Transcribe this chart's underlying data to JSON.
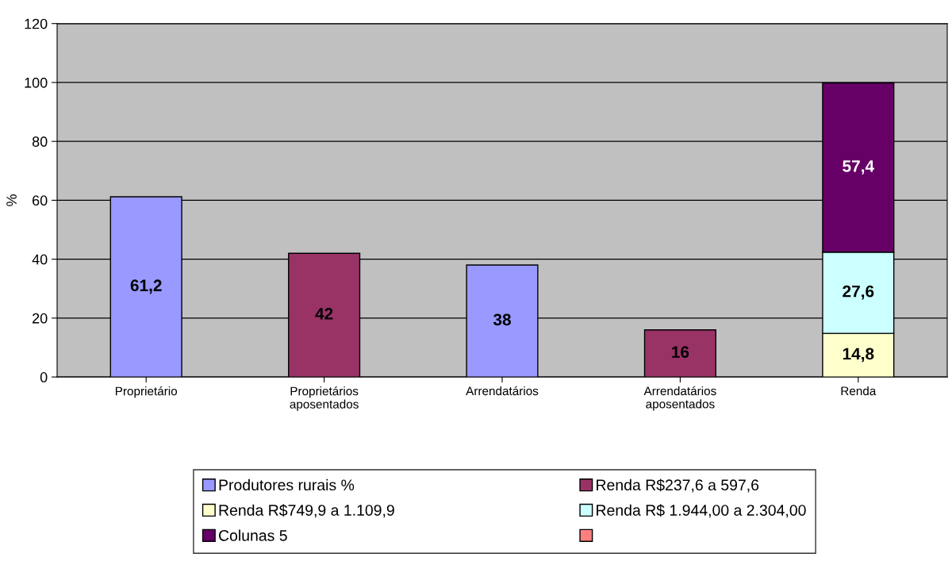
{
  "chart_data": {
    "type": "bar",
    "stacked": true,
    "ylabel": "%",
    "categories": [
      "Proprietário",
      "Proprietários\naposentados",
      "Arrendatários",
      "Arrendatários\naposentados",
      "Renda"
    ],
    "series": [
      {
        "name": "Produtores rurais %",
        "color": "#9999ff",
        "values": [
          61.2,
          null,
          38,
          null,
          null
        ],
        "value_labels": [
          "61,2",
          null,
          "38",
          null,
          null
        ]
      },
      {
        "name": "Renda R$237,6 a 597,6",
        "color": "#993366",
        "values": [
          null,
          42,
          null,
          16,
          null
        ],
        "value_labels": [
          null,
          "42",
          null,
          "16",
          null
        ]
      },
      {
        "name": "Renda R$749,9 a 1.109,9",
        "color": "#ffffcc",
        "values": [
          null,
          null,
          null,
          null,
          14.8
        ],
        "value_labels": [
          null,
          null,
          null,
          null,
          "14,8"
        ]
      },
      {
        "name": "Renda R$ 1.944,00 a 2.304,00",
        "color": "#ccffff",
        "values": [
          null,
          null,
          null,
          null,
          27.6
        ],
        "value_labels": [
          null,
          null,
          null,
          null,
          "27,6"
        ]
      },
      {
        "name": "Colunas 5",
        "color": "#660066",
        "values": [
          null,
          null,
          null,
          null,
          57.4
        ],
        "value_labels": [
          null,
          null,
          null,
          null,
          "57,4"
        ]
      },
      {
        "color": "#ff8080",
        "values": [
          null,
          null,
          null,
          null,
          null
        ]
      }
    ],
    "ylim": [
      0,
      120
    ],
    "yticks": [
      0,
      20,
      40,
      60,
      80,
      100,
      120
    ],
    "grid": "y",
    "legend": "bottom"
  }
}
